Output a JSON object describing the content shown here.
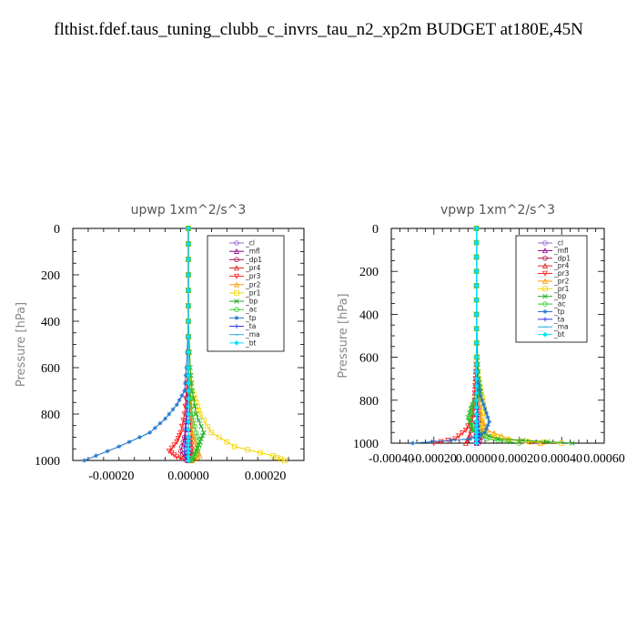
{
  "title": "flthist.fdef.taus_tuning_clubb_c_invrs_tau_n2_xp2m  BUDGET at180E,45N",
  "legend_entries": [
    "_cl",
    "_mfl",
    "_dp1",
    "_pr4",
    "_pr3",
    "_pr2",
    "_pr1",
    "_bp",
    "_ac",
    "_tp",
    "_ta",
    "_ma",
    "_bt"
  ],
  "colors": {
    "_cl": "#9966cc",
    "_mfl": "#8b0a8b",
    "_dp1": "#aa1155",
    "_pr4": "#dd2222",
    "_pr3": "#ff2222",
    "_pr2": "#ff9900",
    "_pr1": "#f2d600",
    "_bp": "#22aa22",
    "_ac": "#33cc33",
    "_tp": "#2277cc",
    "_ta": "#3333ee",
    "_ma": "#33aadd",
    "_bt": "#00e5ff"
  },
  "chart_data": [
    {
      "type": "line",
      "title": "upwp   1xm^2/s^3",
      "ylabel": "Pressure [hPa]",
      "xlim": [
        -0.0003,
        0.0003
      ],
      "ylim": [
        1000,
        0
      ],
      "y_inverted": true,
      "xticks": [
        -0.0002,
        0.0,
        0.0002
      ],
      "xtick_labels": [
        "-0.00020",
        "0.00000",
        "0.00020"
      ],
      "yticks": [
        0,
        200,
        400,
        600,
        800,
        1000
      ],
      "legend": "top-right",
      "series": [
        {
          "name": "_cl",
          "x": [
            0,
            0,
            0,
            0,
            0,
            0,
            0,
            0,
            0
          ],
          "y": [
            0,
            200,
            400,
            600,
            700,
            800,
            900,
            950,
            1000
          ]
        },
        {
          "name": "_mfl",
          "x": [
            0,
            0,
            0,
            0,
            0,
            0,
            0,
            0,
            0
          ],
          "y": [
            0,
            200,
            400,
            600,
            700,
            800,
            900,
            950,
            1000
          ]
        },
        {
          "name": "_dp1",
          "x": [
            0,
            0,
            0,
            0,
            -3e-06,
            -5e-06,
            -1e-05,
            -2e-05,
            -5e-06
          ],
          "y": [
            0,
            200,
            400,
            600,
            700,
            800,
            900,
            960,
            1000
          ]
        },
        {
          "name": "_pr4",
          "x": [
            0,
            0,
            0,
            0,
            2e-06,
            4e-06,
            8e-06,
            1e-05,
            5e-06
          ],
          "y": [
            0,
            200,
            400,
            600,
            700,
            800,
            900,
            960,
            1000
          ]
        },
        {
          "name": "_pr3",
          "x": [
            0,
            0,
            0,
            0,
            -5e-06,
            -1e-05,
            -2e-05,
            -3e-05,
            -5e-05,
            -3e-05,
            0
          ],
          "y": [
            0,
            200,
            400,
            600,
            700,
            800,
            880,
            920,
            960,
            985,
            1000
          ]
        },
        {
          "name": "_pr2",
          "x": [
            0,
            0,
            0,
            0,
            4e-06,
            8e-06,
            1e-05,
            2e-05,
            3e-05,
            1e-05
          ],
          "y": [
            0,
            200,
            400,
            600,
            700,
            800,
            880,
            940,
            980,
            1000
          ]
        },
        {
          "name": "_pr1",
          "x": [
            0,
            0,
            0,
            0,
            1e-05,
            2e-05,
            3e-05,
            6e-05,
            0.00012,
            0.00022,
            0.00025
          ],
          "y": [
            0,
            200,
            400,
            600,
            700,
            750,
            800,
            880,
            940,
            980,
            1000
          ]
        },
        {
          "name": "_bp",
          "x": [
            0,
            0,
            0,
            5e-06,
            1e-05,
            2e-05,
            4e-05,
            3e-05,
            2e-05,
            1e-05
          ],
          "y": [
            0,
            200,
            400,
            600,
            700,
            800,
            880,
            920,
            960,
            1000
          ]
        },
        {
          "name": "_ac",
          "x": [
            0,
            0,
            0,
            0,
            5e-06,
            1e-05,
            2e-05,
            3e-05,
            2e-05,
            5e-06
          ],
          "y": [
            0,
            200,
            400,
            600,
            700,
            800,
            880,
            930,
            970,
            1000
          ]
        },
        {
          "name": "_tp",
          "x": [
            0,
            0,
            0,
            -5e-06,
            -1e-05,
            -3e-05,
            -6e-05,
            -0.0001,
            -0.00018,
            -0.00027
          ],
          "y": [
            0,
            200,
            400,
            600,
            700,
            760,
            820,
            880,
            940,
            1000
          ]
        },
        {
          "name": "_ta",
          "x": [
            0,
            0,
            0,
            0,
            -2e-06,
            -4e-06,
            -8e-06,
            -1e-05,
            -5e-06
          ],
          "y": [
            0,
            200,
            400,
            600,
            700,
            800,
            900,
            960,
            1000
          ]
        },
        {
          "name": "_ma",
          "x": [
            0,
            0,
            0,
            0,
            0,
            0,
            0,
            0,
            0
          ],
          "y": [
            0,
            200,
            400,
            600,
            700,
            800,
            900,
            950,
            1000
          ]
        },
        {
          "name": "_bt",
          "x": [
            0,
            0,
            0,
            0,
            0,
            0,
            0,
            0,
            0
          ],
          "y": [
            0,
            200,
            400,
            600,
            700,
            800,
            900,
            950,
            1000
          ]
        }
      ]
    },
    {
      "type": "line",
      "title": "vpwp   1xm^2/s^3",
      "ylabel": "Pressure [hPa]",
      "xlim": [
        -0.0004,
        0.0006
      ],
      "ylim": [
        1000,
        0
      ],
      "y_inverted": true,
      "xticks": [
        -0.0004,
        -0.0002,
        0.0,
        0.0002,
        0.0004,
        0.0006
      ],
      "xtick_labels": [
        "-0.00040",
        "-0.00020",
        "0.00000",
        "0.00020",
        "0.00040",
        "0.00060"
      ],
      "yticks": [
        0,
        200,
        400,
        600,
        800,
        1000
      ],
      "legend": "top-right",
      "series": [
        {
          "name": "_cl",
          "x": [
            0,
            0,
            0,
            0,
            0,
            0,
            0,
            0,
            0
          ],
          "y": [
            0,
            200,
            400,
            600,
            700,
            800,
            900,
            950,
            1000
          ]
        },
        {
          "name": "_mfl",
          "x": [
            0,
            0,
            0,
            0,
            0,
            0,
            0,
            0,
            0
          ],
          "y": [
            0,
            200,
            400,
            600,
            700,
            800,
            900,
            950,
            1000
          ]
        },
        {
          "name": "_dp1",
          "x": [
            0,
            0,
            0,
            0,
            5e-06,
            1e-05,
            2e-05,
            3e-05,
            1e-05
          ],
          "y": [
            0,
            200,
            400,
            600,
            700,
            800,
            900,
            960,
            1000
          ]
        },
        {
          "name": "_pr4",
          "x": [
            0,
            0,
            0,
            0,
            -5e-06,
            -1e-05,
            -2e-05,
            -3e-05,
            -5e-05
          ],
          "y": [
            0,
            200,
            400,
            600,
            700,
            800,
            900,
            960,
            1000
          ]
        },
        {
          "name": "_pr3",
          "x": [
            0,
            0,
            0,
            0,
            -5e-06,
            -1e-05,
            -2e-05,
            -5e-05,
            -0.0001,
            -0.0002
          ],
          "y": [
            0,
            200,
            400,
            600,
            700,
            800,
            880,
            940,
            980,
            1000
          ]
        },
        {
          "name": "_pr2",
          "x": [
            0,
            0,
            0,
            0,
            5e-06,
            1e-05,
            2e-05,
            5e-05,
            0.00015,
            0.0003
          ],
          "y": [
            0,
            200,
            400,
            600,
            700,
            800,
            880,
            940,
            980,
            1000
          ]
        },
        {
          "name": "_pr1",
          "x": [
            0,
            0,
            0,
            0,
            1e-05,
            2e-05,
            3e-05,
            4e-05,
            2e-05,
            5e-05,
            0.00015,
            0.0004
          ],
          "y": [
            0,
            200,
            400,
            600,
            700,
            760,
            800,
            860,
            920,
            960,
            985,
            1000
          ]
        },
        {
          "name": "_bp",
          "x": [
            0,
            0,
            0,
            5e-06,
            1e-05,
            2e-05,
            -2e-05,
            -4e-05,
            -2e-05,
            0.0001,
            0.00045
          ],
          "y": [
            0,
            200,
            400,
            600,
            700,
            760,
            820,
            880,
            940,
            980,
            1000
          ]
        },
        {
          "name": "_ac",
          "x": [
            0,
            0,
            0,
            0,
            5e-06,
            1e-05,
            -2e-05,
            -3e-05,
            -1e-05,
            5e-05,
            0.0002
          ],
          "y": [
            0,
            200,
            400,
            600,
            700,
            760,
            830,
            880,
            940,
            980,
            1000
          ]
        },
        {
          "name": "_tp",
          "x": [
            0,
            0,
            0,
            0,
            5e-06,
            2e-05,
            4e-05,
            6e-05,
            4e-05,
            -3e-05,
            -0.0003
          ],
          "y": [
            0,
            200,
            400,
            600,
            700,
            780,
            840,
            900,
            950,
            980,
            1000
          ]
        },
        {
          "name": "_ta",
          "x": [
            0,
            0,
            0,
            0,
            2e-06,
            4e-06,
            8e-06,
            1e-05,
            5e-06
          ],
          "y": [
            0,
            200,
            400,
            600,
            700,
            800,
            900,
            960,
            1000
          ]
        },
        {
          "name": "_ma",
          "x": [
            0,
            0,
            0,
            0,
            0,
            0,
            0,
            0,
            0
          ],
          "y": [
            0,
            200,
            400,
            600,
            700,
            800,
            900,
            950,
            1000
          ]
        },
        {
          "name": "_bt",
          "x": [
            0,
            0,
            0,
            0,
            0,
            0,
            0,
            0,
            0
          ],
          "y": [
            0,
            200,
            400,
            600,
            700,
            800,
            900,
            950,
            1000
          ]
        }
      ]
    }
  ]
}
